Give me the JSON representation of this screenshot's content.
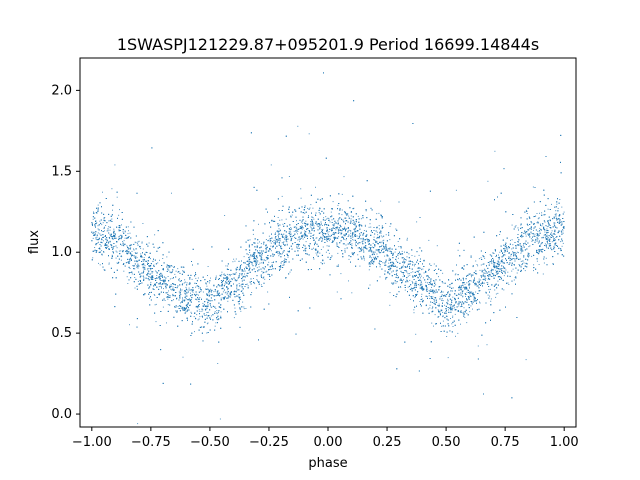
{
  "chart_data": {
    "type": "scatter",
    "title": "1SWASPJ121229.87+095201.9 Period 16699.14844s",
    "xlabel": "phase",
    "ylabel": "flux",
    "xlim": [
      -1.05,
      1.05
    ],
    "ylim": [
      -0.08,
      2.2
    ],
    "x_ticks": [
      -1.0,
      -0.75,
      -0.5,
      -0.25,
      0.0,
      0.25,
      0.5,
      0.75,
      1.0
    ],
    "x_tick_labels": [
      "−1.00",
      "−0.75",
      "−0.50",
      "−0.25",
      "0.00",
      "0.25",
      "0.50",
      "0.75",
      "1.00"
    ],
    "y_ticks": [
      0.0,
      0.5,
      1.0,
      1.5,
      2.0
    ],
    "y_tick_labels": [
      "0.0",
      "0.5",
      "1.0",
      "1.5",
      "2.0"
    ],
    "grid": false,
    "marker_color": "#1f77b4",
    "series": [
      {
        "phase": [
          -1.0,
          -0.9,
          -0.8,
          -0.7,
          -0.6,
          -0.5,
          -0.4,
          -0.3,
          -0.2,
          -0.1,
          0.0,
          0.1,
          0.2,
          0.3,
          0.4,
          0.5,
          0.6,
          0.7,
          0.8,
          0.9,
          1.0
        ],
        "flux": [
          1.12,
          1.06,
          0.93,
          0.82,
          0.73,
          0.68,
          0.8,
          0.93,
          1.06,
          1.12,
          1.14,
          1.11,
          1.03,
          0.92,
          0.8,
          0.68,
          0.76,
          0.88,
          1.02,
          1.1,
          1.14
        ]
      }
    ]
  }
}
